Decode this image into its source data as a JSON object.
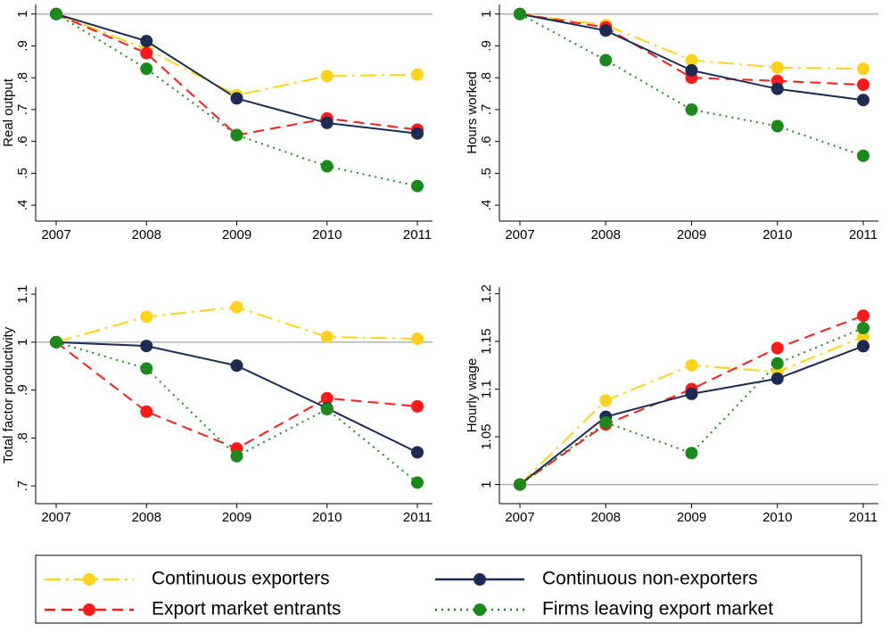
{
  "chart_data": [
    {
      "type": "line",
      "ylabel": "Real output",
      "categories": [
        "2007",
        "2008",
        "2009",
        "2010",
        "2011"
      ],
      "ylim": [
        0.35,
        1.03
      ],
      "yline": 1,
      "yticks": [
        {
          "value": 0.4,
          "label": ".4"
        },
        {
          "value": 0.5,
          "label": ".5"
        },
        {
          "value": 0.6,
          "label": ".6"
        },
        {
          "value": 0.7,
          "label": ".7"
        },
        {
          "value": 0.8,
          "label": ".8"
        },
        {
          "value": 0.9,
          "label": ".9"
        },
        1
      ],
      "series": [
        {
          "name": "Continuous exporters",
          "color": "#ffd21a",
          "line_style": "dashdot",
          "values": [
            1,
            0.89,
            0.745,
            0.805,
            0.81
          ]
        },
        {
          "name": "Continuous non-exporters",
          "color": "#1c2b54",
          "line_style": "solid",
          "values": [
            1,
            0.915,
            0.735,
            0.658,
            0.625
          ]
        },
        {
          "name": "Export market entrants",
          "color": "#ff1a1a",
          "line_style": "dash",
          "values": [
            1,
            0.877,
            0.62,
            0.672,
            0.637
          ]
        },
        {
          "name": "Firms leaving export market",
          "color": "#1a8a1a",
          "line_style": "dot",
          "values": [
            1,
            0.828,
            0.62,
            0.522,
            0.46
          ]
        }
      ]
    },
    {
      "type": "line",
      "ylabel": "Hours worked",
      "categories": [
        "2007",
        "2008",
        "2009",
        "2010",
        "2011"
      ],
      "ylim": [
        0.35,
        1.03
      ],
      "yline": 1,
      "yticks": [
        {
          "value": 0.4,
          "label": ".4"
        },
        {
          "value": 0.5,
          "label": ".5"
        },
        {
          "value": 0.6,
          "label": ".6"
        },
        {
          "value": 0.7,
          "label": ".7"
        },
        {
          "value": 0.8,
          "label": ".8"
        },
        {
          "value": 0.9,
          "label": ".9"
        },
        1
      ],
      "series": [
        {
          "name": "Continuous exporters",
          "color": "#ffd21a",
          "line_style": "dashdot",
          "values": [
            1,
            0.965,
            0.855,
            0.832,
            0.828
          ]
        },
        {
          "name": "Continuous non-exporters",
          "color": "#1c2b54",
          "line_style": "solid",
          "values": [
            1,
            0.948,
            0.823,
            0.765,
            0.73
          ]
        },
        {
          "name": "Export market entrants",
          "color": "#ff1a1a",
          "line_style": "dash",
          "values": [
            1,
            0.958,
            0.8,
            0.79,
            0.778
          ]
        },
        {
          "name": "Firms leaving export market",
          "color": "#1a8a1a",
          "line_style": "dot",
          "values": [
            1,
            0.855,
            0.7,
            0.648,
            0.555
          ]
        }
      ]
    },
    {
      "type": "line",
      "ylabel": "Total factor productivity",
      "categories": [
        "2007",
        "2008",
        "2009",
        "2010",
        "2011"
      ],
      "ylim": [
        0.663,
        1.115
      ],
      "yline": 1,
      "yticks": [
        {
          "value": 0.7,
          "label": ".7"
        },
        {
          "value": 0.8,
          "label": ".8"
        },
        {
          "value": 0.9,
          "label": ".9"
        },
        1,
        1.1
      ],
      "series": [
        {
          "name": "Continuous exporters",
          "color": "#ffd21a",
          "line_style": "dashdot",
          "values": [
            1,
            1.053,
            1.073,
            1.011,
            1.007
          ]
        },
        {
          "name": "Continuous non-exporters",
          "color": "#1c2b54",
          "line_style": "solid",
          "values": [
            1,
            0.992,
            0.951,
            0.862,
            0.77
          ]
        },
        {
          "name": "Export market entrants",
          "color": "#ff1a1a",
          "line_style": "dash",
          "values": [
            1,
            0.855,
            0.778,
            0.883,
            0.866
          ]
        },
        {
          "name": "Firms leaving export market",
          "color": "#1a8a1a",
          "line_style": "dot",
          "values": [
            1,
            0.945,
            0.762,
            0.86,
            0.707
          ]
        }
      ]
    },
    {
      "type": "line",
      "ylabel": "Hourly wage",
      "categories": [
        "2007",
        "2008",
        "2009",
        "2010",
        "2011"
      ],
      "ylim": [
        0.98,
        1.207
      ],
      "yline": 1,
      "yticks": [
        1,
        1.05,
        1.1,
        1.15,
        1.2
      ],
      "series": [
        {
          "name": "Continuous exporters",
          "color": "#ffd21a",
          "line_style": "dashdot",
          "values": [
            1,
            1.088,
            1.125,
            1.118,
            1.155
          ]
        },
        {
          "name": "Continuous non-exporters",
          "color": "#1c2b54",
          "line_style": "solid",
          "values": [
            1,
            1.071,
            1.095,
            1.111,
            1.145
          ]
        },
        {
          "name": "Export market entrants",
          "color": "#ff1a1a",
          "line_style": "dash",
          "values": [
            1,
            1.063,
            1.1,
            1.143,
            1.177
          ]
        },
        {
          "name": "Firms leaving export market",
          "color": "#1a8a1a",
          "line_style": "dot",
          "values": [
            1,
            1.065,
            1.033,
            1.127,
            1.164
          ]
        }
      ]
    }
  ]
}
